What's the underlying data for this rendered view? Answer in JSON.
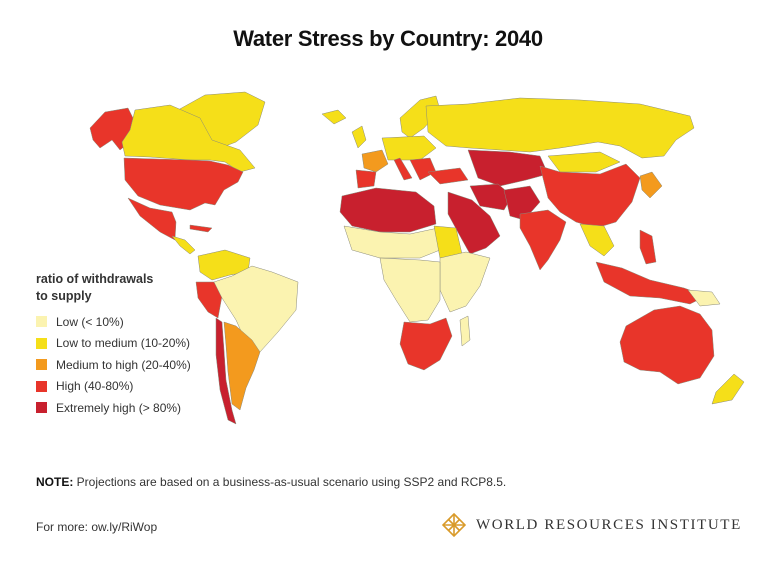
{
  "title": "Water Stress by Country: 2040",
  "colors": {
    "low": "#fbf3b0",
    "low_medium": "#f5df19",
    "medium_high": "#f39a1e",
    "high": "#e8352a",
    "extremely_high": "#c8202e",
    "border": "#8a8a7a",
    "logo": "#d99b2b"
  },
  "legend": {
    "title_line1": "ratio of withdrawals",
    "title_line2": "to supply",
    "items": [
      {
        "label": "Low (< 10%)",
        "color": "#fbf3b0"
      },
      {
        "label": "Low to medium (10-20%)",
        "color": "#f5df19"
      },
      {
        "label": "Medium to high  (20-40%)",
        "color": "#f39a1e"
      },
      {
        "label": "High (40-80%)",
        "color": "#e8352a"
      },
      {
        "label": "Extremely high (> 80%)",
        "color": "#c8202e"
      }
    ]
  },
  "note": {
    "label": "NOTE:",
    "text": " Projections are based on a business-as-usual scenario using SSP2 and RCP8.5."
  },
  "more": "For more: ow.ly/RiWop",
  "logo": {
    "text": "WORLD RESOURCES INSTITUTE",
    "icon": "wri-lattice-icon"
  }
}
